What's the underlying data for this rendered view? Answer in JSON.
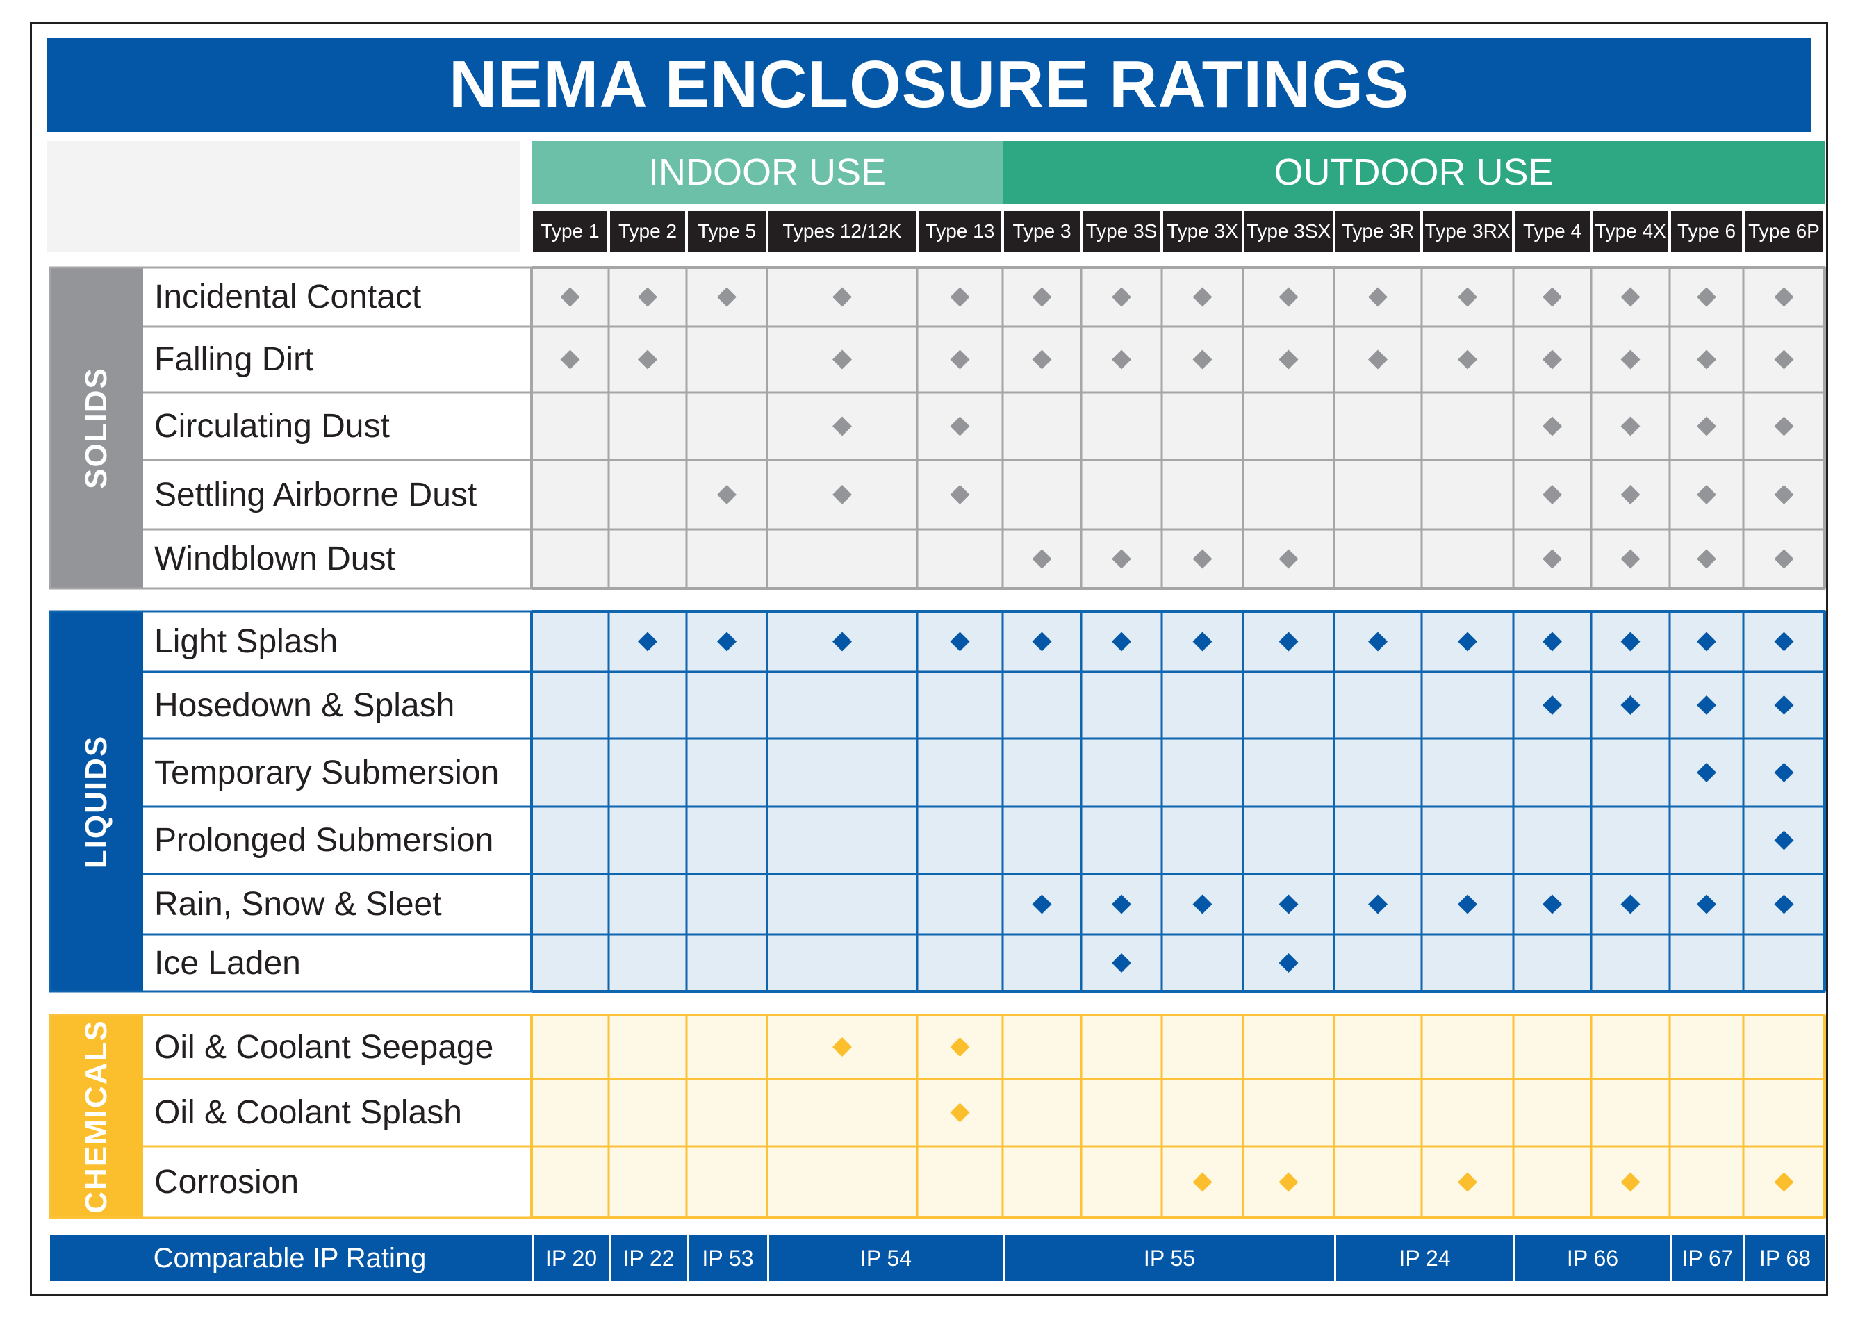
{
  "title": "NEMA ENCLOSURE RATINGS",
  "groups": {
    "indoor": "INDOOR USE",
    "outdoor": "OUTDOOR USE"
  },
  "colors": {
    "title_bg": "#0457a7",
    "indoor": "#6cc0a8",
    "outdoor": "#2da882",
    "solids": "#939598",
    "liquids": "#0457a7",
    "chemicals": "#fbbf2e"
  },
  "chart_data": {
    "type": "table",
    "title": "NEMA ENCLOSURE RATINGS",
    "columns": [
      "Type 1",
      "Type 2",
      "Type 5",
      "Types 12/12K",
      "Type 13",
      "Type 3",
      "Type 3S",
      "Type 3X",
      "Type 3SX",
      "Type 3R",
      "Type 3RX",
      "Type 4",
      "Type 4X",
      "Type 6",
      "Type 6P"
    ],
    "column_groups": [
      {
        "name": "INDOOR USE",
        "columns": [
          "Type 1",
          "Type 2",
          "Type 5",
          "Types 12/12K",
          "Type 13"
        ]
      },
      {
        "name": "OUTDOOR USE",
        "columns": [
          "Type 3",
          "Type 3S",
          "Type 3X",
          "Type 3SX",
          "Type 3R",
          "Type 3RX",
          "Type 4",
          "Type 4X",
          "Type 6",
          "Type 6P"
        ]
      }
    ],
    "categories": [
      {
        "name": "SOLIDS",
        "rows": [
          {
            "label": "Incidental Contact",
            "marks": [
              1,
              1,
              1,
              1,
              1,
              1,
              1,
              1,
              1,
              1,
              1,
              1,
              1,
              1,
              1
            ]
          },
          {
            "label": "Falling Dirt",
            "marks": [
              1,
              1,
              0,
              1,
              1,
              1,
              1,
              1,
              1,
              1,
              1,
              1,
              1,
              1,
              1
            ]
          },
          {
            "label": "Circulating Dust",
            "marks": [
              0,
              0,
              0,
              1,
              1,
              0,
              0,
              0,
              0,
              0,
              0,
              1,
              1,
              1,
              1
            ]
          },
          {
            "label": "Settling Airborne Dust",
            "marks": [
              0,
              0,
              1,
              1,
              1,
              0,
              0,
              0,
              0,
              0,
              0,
              1,
              1,
              1,
              1
            ]
          },
          {
            "label": "Windblown Dust",
            "marks": [
              0,
              0,
              0,
              0,
              0,
              1,
              1,
              1,
              1,
              0,
              0,
              1,
              1,
              1,
              1
            ]
          }
        ]
      },
      {
        "name": "LIQUIDS",
        "rows": [
          {
            "label": "Light Splash",
            "marks": [
              0,
              1,
              1,
              1,
              1,
              1,
              1,
              1,
              1,
              1,
              1,
              1,
              1,
              1,
              1
            ]
          },
          {
            "label": "Hosedown & Splash",
            "marks": [
              0,
              0,
              0,
              0,
              0,
              0,
              0,
              0,
              0,
              0,
              0,
              1,
              1,
              1,
              1
            ]
          },
          {
            "label": "Temporary Submersion",
            "marks": [
              0,
              0,
              0,
              0,
              0,
              0,
              0,
              0,
              0,
              0,
              0,
              0,
              0,
              1,
              1
            ]
          },
          {
            "label": "Prolonged Submersion",
            "marks": [
              0,
              0,
              0,
              0,
              0,
              0,
              0,
              0,
              0,
              0,
              0,
              0,
              0,
              0,
              1
            ]
          },
          {
            "label": "Rain, Snow & Sleet",
            "marks": [
              0,
              0,
              0,
              0,
              0,
              1,
              1,
              1,
              1,
              1,
              1,
              1,
              1,
              1,
              1
            ]
          },
          {
            "label": "Ice Laden",
            "marks": [
              0,
              0,
              0,
              0,
              0,
              0,
              1,
              0,
              1,
              0,
              0,
              0,
              0,
              0,
              0
            ]
          }
        ]
      },
      {
        "name": "CHEMICALS",
        "rows": [
          {
            "label": "Oil & Coolant Seepage",
            "marks": [
              0,
              0,
              0,
              1,
              1,
              0,
              0,
              0,
              0,
              0,
              0,
              0,
              0,
              0,
              0
            ]
          },
          {
            "label": "Oil & Coolant Splash",
            "marks": [
              0,
              0,
              0,
              0,
              1,
              0,
              0,
              0,
              0,
              0,
              0,
              0,
              0,
              0,
              0
            ]
          },
          {
            "label": "Corrosion",
            "marks": [
              0,
              0,
              0,
              0,
              0,
              0,
              0,
              1,
              1,
              0,
              1,
              0,
              1,
              0,
              1
            ]
          }
        ]
      }
    ],
    "ip_rating_label": "Comparable IP Rating",
    "ip_ratings": [
      {
        "label": "IP 20",
        "columns": [
          "Type 1"
        ]
      },
      {
        "label": "IP 22",
        "columns": [
          "Type 2"
        ]
      },
      {
        "label": "IP 53",
        "columns": [
          "Type 5"
        ]
      },
      {
        "label": "IP 54",
        "columns": [
          "Types 12/12K",
          "Type 13"
        ]
      },
      {
        "label": "IP 55",
        "columns": [
          "Type 3",
          "Type 3S",
          "Type 3X",
          "Type 3SX"
        ]
      },
      {
        "label": "IP 24",
        "columns": [
          "Type 3R",
          "Type 3RX"
        ]
      },
      {
        "label": "IP 66",
        "columns": [
          "Type 4",
          "Type 4X"
        ]
      },
      {
        "label": "IP 67",
        "columns": [
          "Type 6"
        ]
      },
      {
        "label": "IP 68",
        "columns": [
          "Type 6P"
        ]
      }
    ]
  }
}
